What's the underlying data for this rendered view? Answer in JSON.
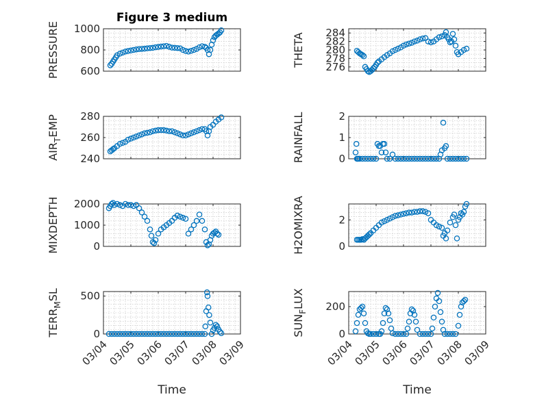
{
  "chart_data": [
    {
      "id": "pressure",
      "type": "scatter",
      "title": "Figure 3 medium",
      "ylabel": "PRESSURE",
      "ylabel_sub": null,
      "ylim": [
        600,
        1000
      ],
      "yticks": [
        600,
        800,
        1000
      ],
      "xlim": [
        0,
        5
      ],
      "xticks": [
        "03/04",
        "03/05",
        "03/06",
        "03/07",
        "03/08",
        "03/09"
      ],
      "show_xticklabels": false,
      "xlabel": "",
      "grid": true,
      "x": [
        0.25,
        0.3,
        0.35,
        0.4,
        0.45,
        0.5,
        0.6,
        0.7,
        0.8,
        0.9,
        1.0,
        1.1,
        1.2,
        1.3,
        1.4,
        1.5,
        1.6,
        1.7,
        1.8,
        1.9,
        2.0,
        2.1,
        2.2,
        2.3,
        2.4,
        2.5,
        2.6,
        2.7,
        2.8,
        2.9,
        3.0,
        3.1,
        3.2,
        3.3,
        3.4,
        3.5,
        3.6,
        3.7,
        3.75,
        3.8,
        3.85,
        3.9,
        3.95,
        4.0,
        4.05,
        4.1,
        4.15,
        4.2,
        4.25,
        4.3
      ],
      "y": [
        655,
        670,
        690,
        710,
        730,
        750,
        765,
        775,
        785,
        790,
        795,
        800,
        805,
        808,
        810,
        812,
        815,
        818,
        820,
        825,
        828,
        832,
        835,
        838,
        830,
        822,
        820,
        818,
        815,
        800,
        790,
        785,
        792,
        800,
        810,
        825,
        835,
        830,
        820,
        800,
        760,
        800,
        850,
        890,
        920,
        935,
        945,
        955,
        965,
        985
      ]
    },
    {
      "id": "theta",
      "type": "scatter",
      "title": "",
      "ylabel": "THETA",
      "ylabel_sub": null,
      "ylim": [
        275,
        285
      ],
      "yticks": [
        276,
        278,
        280,
        282,
        284
      ],
      "xlim": [
        0,
        5
      ],
      "xticks": [
        "03/04",
        "03/05",
        "03/06",
        "03/07",
        "03/08",
        "03/09"
      ],
      "show_xticklabels": false,
      "xlabel": "",
      "grid": true,
      "x": [
        0.3,
        0.35,
        0.4,
        0.45,
        0.5,
        0.55,
        0.6,
        0.65,
        0.7,
        0.75,
        0.8,
        0.85,
        0.9,
        0.95,
        1.0,
        1.05,
        1.1,
        1.2,
        1.3,
        1.4,
        1.5,
        1.6,
        1.7,
        1.8,
        1.9,
        2.0,
        2.1,
        2.2,
        2.3,
        2.4,
        2.5,
        2.6,
        2.7,
        2.8,
        2.9,
        3.0,
        3.1,
        3.2,
        3.3,
        3.4,
        3.5,
        3.55,
        3.6,
        3.65,
        3.7,
        3.75,
        3.8,
        3.85,
        3.9,
        3.95,
        4.0,
        4.1,
        4.2,
        4.3
      ],
      "y": [
        279.8,
        279.5,
        279.2,
        279.0,
        278.8,
        278.5,
        276.0,
        275.5,
        275.0,
        274.8,
        275.0,
        275.3,
        275.7,
        276.0,
        276.5,
        277.0,
        277.3,
        277.8,
        278.3,
        278.8,
        279.2,
        279.7,
        280.0,
        280.3,
        280.6,
        281.0,
        281.3,
        281.5,
        281.7,
        282.0,
        282.2,
        282.5,
        282.7,
        282.8,
        282.0,
        281.8,
        282.0,
        282.5,
        283.0,
        283.2,
        283.5,
        284.2,
        283.0,
        282.5,
        281.8,
        282.0,
        283.8,
        282.5,
        281.0,
        279.5,
        279.0,
        279.5,
        280.0,
        280.3
      ]
    },
    {
      "id": "air_temp",
      "type": "scatter",
      "title": "",
      "ylabel": "AIR",
      "ylabel_sub": "T",
      "ylabel_rest": "EMP",
      "ylim": [
        240,
        280
      ],
      "yticks": [
        240,
        260,
        280
      ],
      "xlim": [
        0,
        5
      ],
      "xticks": [
        "03/04",
        "03/05",
        "03/06",
        "03/07",
        "03/08",
        "03/09"
      ],
      "show_xticklabels": false,
      "xlabel": "",
      "grid": true,
      "x": [
        0.25,
        0.3,
        0.35,
        0.4,
        0.5,
        0.6,
        0.7,
        0.8,
        0.9,
        1.0,
        1.1,
        1.2,
        1.3,
        1.4,
        1.5,
        1.6,
        1.7,
        1.8,
        1.9,
        2.0,
        2.1,
        2.2,
        2.3,
        2.4,
        2.5,
        2.6,
        2.7,
        2.8,
        2.9,
        3.0,
        3.1,
        3.2,
        3.3,
        3.4,
        3.5,
        3.6,
        3.7,
        3.75,
        3.8,
        3.85,
        3.9,
        4.0,
        4.1,
        4.2,
        4.3
      ],
      "y": [
        247,
        248,
        249,
        250,
        252,
        254,
        255,
        256,
        258,
        259,
        260,
        261,
        262,
        263,
        264,
        264.5,
        265,
        266,
        266.5,
        267,
        267,
        267,
        266.5,
        266,
        266,
        265,
        264,
        263,
        262,
        262,
        263,
        264,
        265,
        266,
        267,
        268,
        268,
        266,
        262,
        266,
        270,
        272,
        275,
        277,
        279
      ]
    },
    {
      "id": "rainfall",
      "type": "scatter",
      "title": "",
      "ylabel": "RAINFALL",
      "ylabel_sub": null,
      "ylim": [
        0,
        2
      ],
      "yticks": [
        0,
        1,
        2
      ],
      "xlim": [
        0,
        5
      ],
      "xticks": [
        "03/04",
        "03/05",
        "03/06",
        "03/07",
        "03/08",
        "03/09"
      ],
      "show_xticklabels": false,
      "xlabel": "",
      "grid": true,
      "x": [
        0.25,
        0.28,
        0.3,
        0.32,
        0.35,
        0.4,
        0.5,
        0.6,
        0.7,
        0.8,
        0.9,
        1.0,
        1.05,
        1.1,
        1.15,
        1.2,
        1.25,
        1.3,
        1.35,
        1.4,
        1.5,
        1.6,
        1.7,
        1.8,
        1.9,
        2.0,
        2.1,
        2.2,
        2.3,
        2.4,
        2.5,
        2.6,
        2.7,
        2.8,
        2.9,
        3.0,
        3.1,
        3.2,
        3.3,
        3.35,
        3.4,
        3.45,
        3.5,
        3.55,
        3.6,
        3.7,
        3.8,
        3.9,
        4.0,
        4.1,
        4.2,
        4.3
      ],
      "y": [
        0.3,
        0.7,
        0.0,
        0.0,
        0.0,
        0.0,
        0.0,
        0.0,
        0.0,
        0.0,
        0.0,
        0.0,
        0.7,
        0.6,
        0.6,
        0.3,
        0.7,
        0.7,
        0.3,
        0.0,
        0.0,
        0.2,
        0.0,
        0.0,
        0.0,
        0.0,
        0.0,
        0.0,
        0.0,
        0.0,
        0.0,
        0.0,
        0.0,
        0.0,
        0.0,
        0.0,
        0.0,
        0.0,
        0.0,
        0.2,
        0.4,
        1.7,
        0.5,
        0.6,
        0.0,
        0.0,
        0.0,
        0.0,
        0.0,
        0.0,
        0.0,
        0.0
      ]
    },
    {
      "id": "mixdepth",
      "type": "scatter",
      "title": "",
      "ylabel": "MIXDEPTH",
      "ylabel_sub": null,
      "ylim": [
        0,
        2000
      ],
      "yticks": [
        0,
        1000,
        2000
      ],
      "xlim": [
        0,
        5
      ],
      "xticks": [
        "03/04",
        "03/05",
        "03/06",
        "03/07",
        "03/08",
        "03/09"
      ],
      "show_xticklabels": false,
      "xlabel": "",
      "grid": true,
      "x": [
        0.2,
        0.25,
        0.3,
        0.35,
        0.4,
        0.5,
        0.6,
        0.7,
        0.8,
        0.9,
        1.0,
        1.1,
        1.2,
        1.3,
        1.4,
        1.5,
        1.6,
        1.7,
        1.75,
        1.8,
        1.85,
        1.9,
        2.0,
        2.1,
        2.2,
        2.3,
        2.4,
        2.5,
        2.6,
        2.7,
        2.8,
        2.9,
        3.0,
        3.1,
        3.2,
        3.3,
        3.4,
        3.5,
        3.6,
        3.7,
        3.75,
        3.8,
        3.85,
        3.9,
        3.95,
        4.0,
        4.05,
        4.1,
        4.15,
        4.2
      ],
      "y": [
        1800,
        1900,
        2000,
        2050,
        1950,
        2000,
        1950,
        1900,
        2000,
        1950,
        1950,
        1900,
        1950,
        1800,
        1600,
        1400,
        1200,
        800,
        500,
        200,
        150,
        300,
        600,
        800,
        900,
        1000,
        1100,
        1200,
        1350,
        1450,
        1400,
        1350,
        1300,
        600,
        800,
        1000,
        1200,
        1500,
        1200,
        800,
        200,
        50,
        100,
        300,
        500,
        600,
        650,
        700,
        600,
        550
      ]
    },
    {
      "id": "h2omixra",
      "type": "scatter",
      "title": "",
      "ylabel": "H2OMIXRA",
      "ylabel_sub": null,
      "ylim": [
        0,
        3.2
      ],
      "yticks": [
        0,
        2
      ],
      "xlim": [
        0,
        5
      ],
      "xticks": [
        "03/04",
        "03/05",
        "03/06",
        "03/07",
        "03/08",
        "03/09"
      ],
      "show_xticklabels": false,
      "xlabel": "",
      "grid": true,
      "x": [
        0.3,
        0.35,
        0.4,
        0.45,
        0.5,
        0.55,
        0.6,
        0.65,
        0.7,
        0.75,
        0.8,
        0.9,
        1.0,
        1.1,
        1.2,
        1.3,
        1.4,
        1.5,
        1.6,
        1.7,
        1.8,
        1.9,
        2.0,
        2.1,
        2.2,
        2.3,
        2.4,
        2.5,
        2.6,
        2.7,
        2.8,
        2.9,
        3.0,
        3.1,
        3.2,
        3.3,
        3.4,
        3.45,
        3.5,
        3.55,
        3.6,
        3.7,
        3.8,
        3.85,
        3.9,
        3.95,
        4.0,
        4.05,
        4.1,
        4.15,
        4.2,
        4.25,
        4.3
      ],
      "y": [
        0.5,
        0.5,
        0.5,
        0.5,
        0.55,
        0.5,
        0.6,
        0.7,
        0.8,
        0.9,
        1.0,
        1.2,
        1.4,
        1.6,
        1.8,
        1.9,
        2.0,
        2.1,
        2.2,
        2.3,
        2.35,
        2.4,
        2.45,
        2.5,
        2.55,
        2.55,
        2.6,
        2.6,
        2.65,
        2.65,
        2.6,
        2.5,
        2.0,
        1.8,
        1.6,
        1.5,
        1.4,
        0.8,
        1.0,
        0.6,
        1.2,
        1.8,
        2.2,
        2.4,
        1.6,
        0.6,
        2.0,
        2.2,
        2.5,
        2.4,
        2.6,
        3.0,
        3.2
      ]
    },
    {
      "id": "terr_msl",
      "type": "scatter",
      "title": "",
      "ylabel": "TERR",
      "ylabel_sub": "M",
      "ylabel_rest": "SL",
      "ylim": [
        0,
        560
      ],
      "yticks": [
        0,
        500
      ],
      "xlim": [
        0,
        5
      ],
      "xticks": [
        "03/04",
        "03/05",
        "03/06",
        "03/07",
        "03/08",
        "03/09"
      ],
      "show_xticklabels": true,
      "xlabel": "Time",
      "grid": true,
      "x": [
        0.2,
        0.3,
        0.4,
        0.5,
        0.6,
        0.7,
        0.8,
        0.9,
        1.0,
        1.1,
        1.2,
        1.3,
        1.4,
        1.5,
        1.6,
        1.7,
        1.8,
        1.9,
        2.0,
        2.1,
        2.2,
        2.3,
        2.4,
        2.5,
        2.6,
        2.7,
        2.8,
        2.9,
        3.0,
        3.1,
        3.2,
        3.3,
        3.4,
        3.5,
        3.6,
        3.7,
        3.72,
        3.75,
        3.78,
        3.8,
        3.83,
        3.86,
        3.9,
        3.95,
        4.0,
        4.05,
        4.1,
        4.15,
        4.2,
        4.25,
        4.3
      ],
      "y": [
        0,
        0,
        0,
        0,
        0,
        0,
        0,
        0,
        0,
        0,
        0,
        0,
        0,
        0,
        0,
        0,
        0,
        0,
        0,
        0,
        0,
        0,
        0,
        0,
        0,
        0,
        0,
        0,
        0,
        0,
        0,
        0,
        0,
        0,
        0,
        0,
        100,
        300,
        550,
        500,
        350,
        250,
        150,
        0,
        50,
        80,
        120,
        100,
        60,
        30,
        10
      ]
    },
    {
      "id": "sun_flux",
      "type": "scatter",
      "title": "",
      "ylabel": "SUN",
      "ylabel_sub": "F",
      "ylabel_rest": "LUX",
      "ylim": [
        0,
        310
      ],
      "yticks": [
        0,
        200
      ],
      "xlim": [
        0,
        5
      ],
      "xticks": [
        "03/04",
        "03/05",
        "03/06",
        "03/07",
        "03/08",
        "03/09"
      ],
      "show_xticklabels": true,
      "xlabel": "Time",
      "grid": true,
      "x": [
        0.25,
        0.3,
        0.35,
        0.4,
        0.45,
        0.5,
        0.55,
        0.6,
        0.65,
        0.7,
        0.75,
        0.8,
        0.9,
        1.0,
        1.1,
        1.15,
        1.2,
        1.25,
        1.3,
        1.35,
        1.4,
        1.45,
        1.5,
        1.55,
        1.6,
        1.7,
        1.8,
        1.9,
        2.0,
        2.1,
        2.15,
        2.2,
        2.25,
        2.3,
        2.35,
        2.4,
        2.45,
        2.5,
        2.6,
        2.7,
        2.8,
        2.9,
        3.0,
        3.05,
        3.1,
        3.15,
        3.2,
        3.25,
        3.3,
        3.35,
        3.4,
        3.45,
        3.5,
        3.6,
        3.7,
        3.8,
        3.9,
        4.0,
        4.05,
        4.1,
        4.15,
        4.2,
        4.25
      ],
      "y": [
        20,
        80,
        140,
        180,
        190,
        200,
        150,
        80,
        20,
        5,
        0,
        0,
        0,
        0,
        0,
        0,
        20,
        80,
        150,
        190,
        180,
        150,
        100,
        40,
        5,
        0,
        0,
        0,
        0,
        0,
        40,
        90,
        150,
        180,
        170,
        140,
        90,
        30,
        0,
        0,
        0,
        0,
        0,
        40,
        120,
        200,
        260,
        300,
        240,
        160,
        90,
        30,
        0,
        0,
        0,
        0,
        0,
        60,
        140,
        200,
        230,
        240,
        250
      ]
    }
  ]
}
